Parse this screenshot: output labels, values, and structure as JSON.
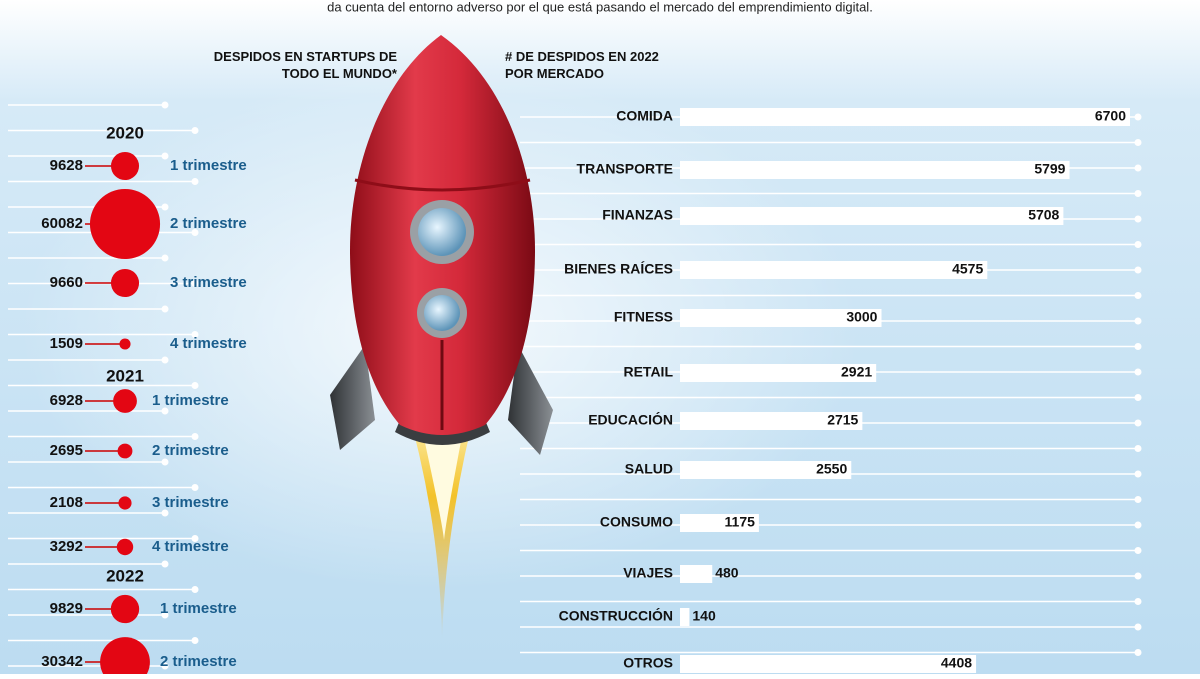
{
  "intro": "da cuenta del entorno adverso por el que está pasando el mercado del emprendimiento digital.",
  "chart_data": [
    {
      "type": "bubble",
      "title": "DESPIDOS EN STARTUPS DE TODO EL MUNDO*",
      "color": "#e30613",
      "categories": [
        "1 trimestre",
        "2 trimestre",
        "3 trimestre",
        "4 trimestre"
      ],
      "series": [
        {
          "name": "2020",
          "values": [
            9628,
            60082,
            9660,
            1509
          ]
        },
        {
          "name": "2021",
          "values": [
            6928,
            2695,
            2108,
            3292
          ]
        },
        {
          "name": "2022",
          "values": [
            9829,
            30342,
            null,
            null
          ]
        }
      ]
    },
    {
      "type": "hbar",
      "title": "# DE DESPIDOS EN 2022 POR MERCADO",
      "color": "#ffffff",
      "categories": [
        "COMIDA",
        "TRANSPORTE",
        "FINANZAS",
        "BIENES RAÍCES",
        "FITNESS",
        "RETAIL",
        "EDUCACIÓN",
        "SALUD",
        "CONSUMO",
        "VIAJES",
        "CONSTRUCCIÓN",
        "OTROS"
      ],
      "values": [
        6700,
        5799,
        5708,
        4575,
        3000,
        2921,
        2715,
        2550,
        1175,
        480,
        140,
        4408
      ]
    }
  ]
}
